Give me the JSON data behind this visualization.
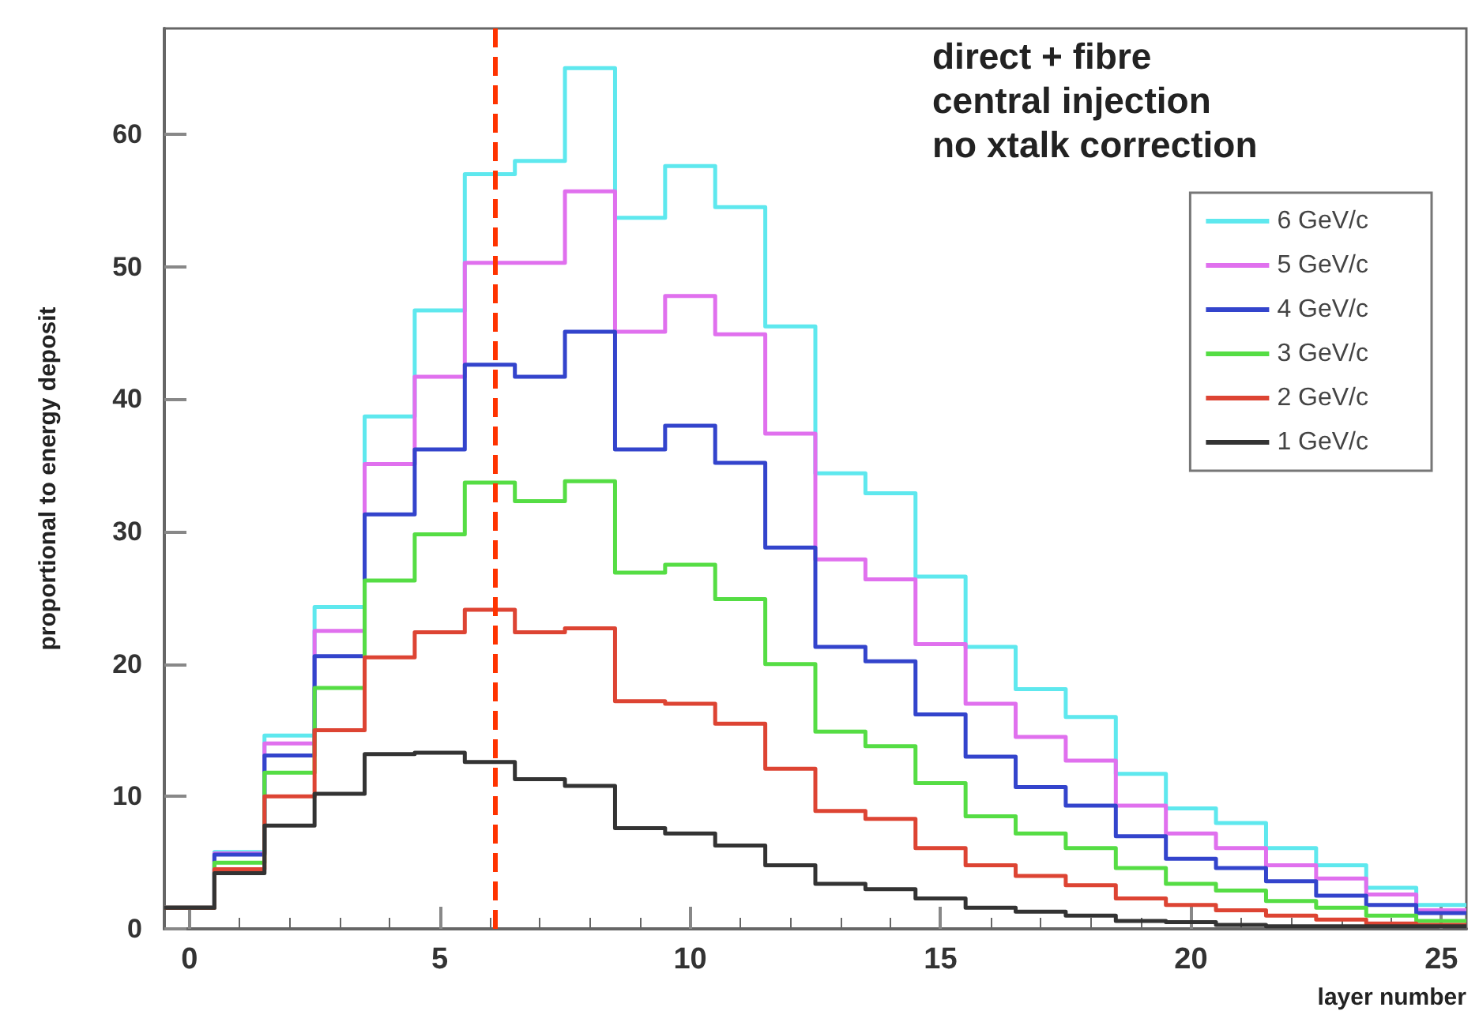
{
  "chart_data": {
    "type": "histogram",
    "xlabel": "layer number",
    "ylabel": "proportional to energy deposit",
    "annotations": [
      "direct + fibre",
      "central injection",
      "no xtalk correction"
    ],
    "bins": [
      -0.5,
      0.5,
      1.5,
      2.5,
      3.5,
      4.5,
      5.5,
      6.5,
      7.5,
      8.5,
      9.5,
      10.5,
      11.5,
      12.5,
      13.5,
      14.5,
      15.5,
      16.5,
      17.5,
      18.5,
      19.5,
      20.5,
      21.5,
      22.5,
      23.5,
      24.5,
      25.5
    ],
    "series": [
      {
        "name": "6 GeV/c",
        "color": "#5ee8ee",
        "values": [
          1.6,
          5.8,
          14.6,
          24.3,
          38.7,
          46.7,
          57.0,
          58.0,
          65.0,
          53.7,
          57.6,
          54.5,
          45.5,
          34.4,
          32.9,
          26.6,
          21.3,
          18.1,
          16.0,
          11.7,
          9.1,
          8.0,
          6.1,
          4.8,
          3.1,
          1.8
        ]
      },
      {
        "name": "5 GeV/c",
        "color": "#e070ee",
        "values": [
          1.6,
          5.7,
          14.0,
          22.5,
          35.1,
          41.7,
          50.3,
          50.3,
          55.7,
          45.1,
          47.8,
          44.9,
          37.4,
          27.9,
          26.4,
          21.5,
          17.0,
          14.5,
          12.7,
          9.3,
          7.2,
          6.1,
          4.8,
          3.8,
          2.6,
          1.4
        ]
      },
      {
        "name": "4 GeV/c",
        "color": "#3344cc",
        "values": [
          1.6,
          5.6,
          13.1,
          20.6,
          31.3,
          36.2,
          42.6,
          41.7,
          45.1,
          36.2,
          38.0,
          35.2,
          28.8,
          21.3,
          20.2,
          16.2,
          13.0,
          10.7,
          9.3,
          7.0,
          5.3,
          4.6,
          3.6,
          2.5,
          1.8,
          1.2
        ]
      },
      {
        "name": "3 GeV/c",
        "color": "#55dd44",
        "values": [
          1.6,
          5.0,
          11.8,
          18.2,
          26.3,
          29.8,
          33.7,
          32.3,
          33.8,
          26.9,
          27.5,
          24.9,
          20.0,
          14.9,
          13.8,
          11.0,
          8.5,
          7.2,
          6.1,
          4.6,
          3.4,
          2.9,
          2.1,
          1.6,
          1.0,
          0.6
        ]
      },
      {
        "name": "2 GeV/c",
        "color": "#dd4433",
        "values": [
          1.6,
          4.5,
          10.0,
          15.0,
          20.5,
          22.4,
          24.1,
          22.4,
          22.7,
          17.2,
          17.0,
          15.5,
          12.1,
          8.9,
          8.3,
          6.1,
          4.8,
          4.0,
          3.3,
          2.3,
          1.8,
          1.4,
          1.0,
          0.7,
          0.4,
          0.3
        ]
      },
      {
        "name": "1 GeV/c",
        "color": "#333333",
        "values": [
          1.6,
          4.2,
          7.8,
          10.2,
          13.2,
          13.3,
          12.6,
          11.3,
          10.8,
          7.6,
          7.2,
          6.3,
          4.8,
          3.4,
          3.0,
          2.3,
          1.6,
          1.3,
          1.0,
          0.6,
          0.5,
          0.3,
          0.2,
          0.2,
          0.2,
          0.2
        ]
      }
    ],
    "xlim": [
      -0.5,
      25.5
    ],
    "xticks": [
      0,
      5,
      10,
      15,
      20,
      25
    ],
    "ylim": [
      0,
      68
    ],
    "yticks": [
      0,
      10,
      20,
      30,
      40,
      50,
      60
    ],
    "ref_lines": [
      {
        "axis": "x",
        "value": 6.1,
        "color": "#ff3300",
        "line_style": "dashed"
      }
    ],
    "grid": false,
    "legend": "top right"
  }
}
